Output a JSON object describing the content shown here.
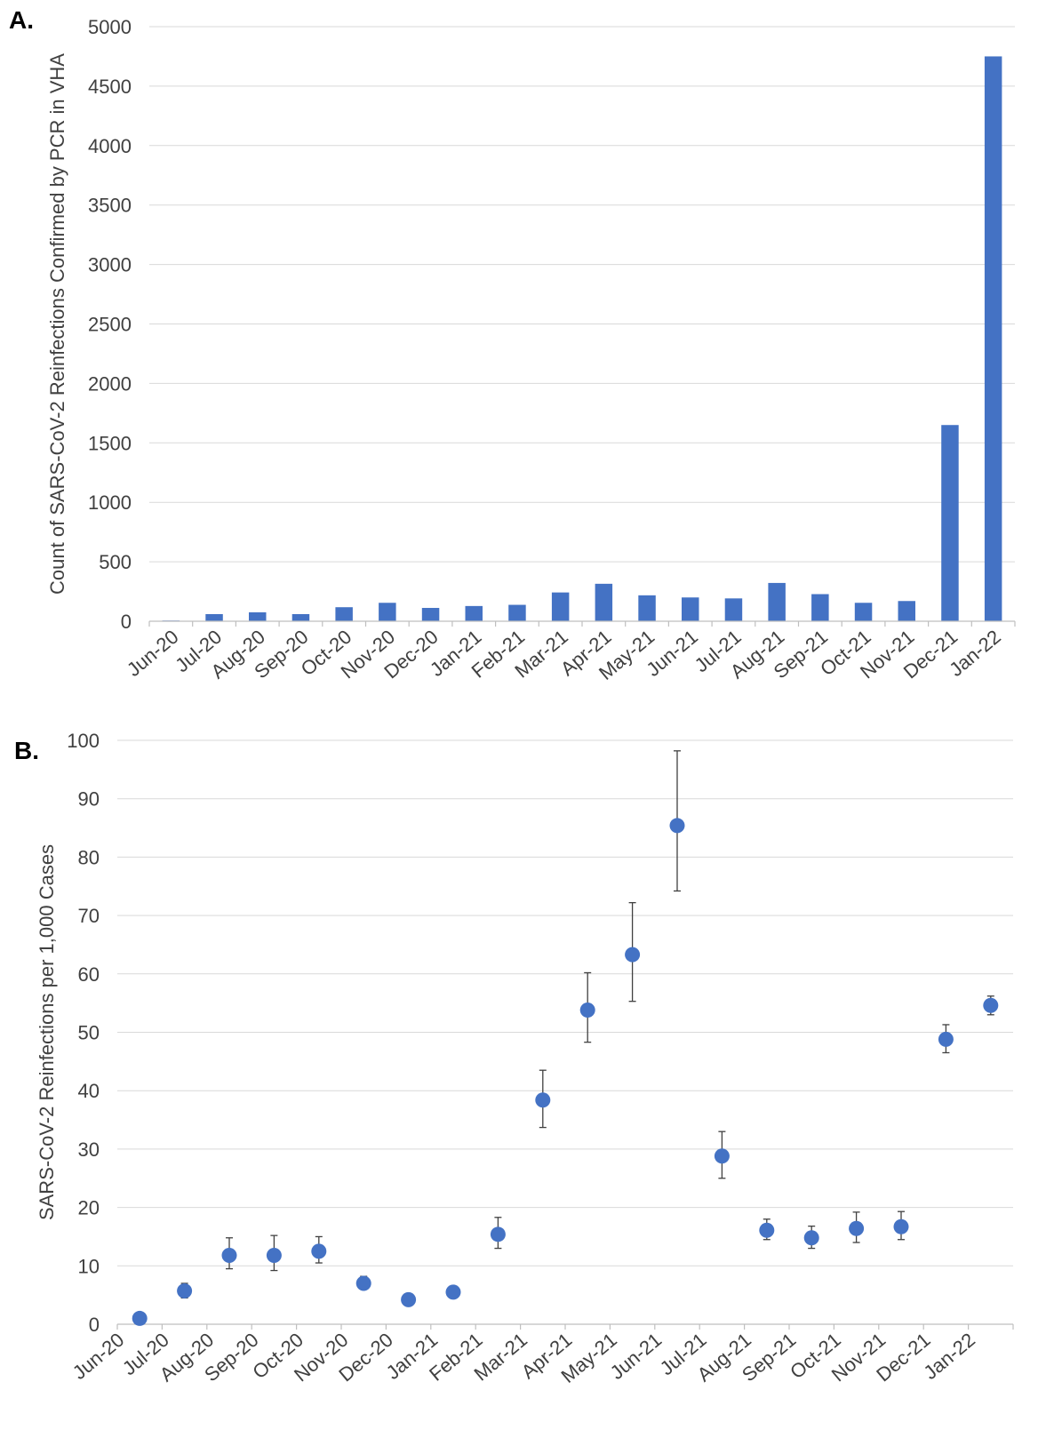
{
  "chart_data": [
    {
      "panel_label": "A.",
      "type": "bar",
      "ylabel": "Count of SARS-CoV-2 Reinfections Confirmed by PCR in VHA",
      "ylim": [
        0,
        5000
      ],
      "yticks": [
        0,
        500,
        1000,
        1500,
        2000,
        2500,
        3000,
        3500,
        4000,
        4500,
        5000
      ],
      "grid": true,
      "color": "#4472c4",
      "categories": [
        "Jun-20",
        "Jul-20",
        "Aug-20",
        "Sep-20",
        "Oct-20",
        "Nov-20",
        "Dec-20",
        "Jan-21",
        "Feb-21",
        "Mar-21",
        "Apr-21",
        "May-21",
        "Jun-21",
        "Jul-21",
        "Aug-21",
        "Sep-21",
        "Oct-21",
        "Nov-21",
        "Dec-21",
        "Jan-22"
      ],
      "values": [
        6,
        60,
        75,
        60,
        118,
        155,
        112,
        128,
        138,
        242,
        315,
        218,
        200,
        192,
        322,
        228,
        155,
        170,
        1650,
        4750
      ]
    },
    {
      "panel_label": "B.",
      "type": "scatter",
      "ylabel": "SARS-CoV-2 Reinfections per 1,000 Cases",
      "ylim": [
        0,
        100
      ],
      "yticks": [
        0,
        10,
        20,
        30,
        40,
        50,
        60,
        70,
        80,
        90,
        100
      ],
      "grid": true,
      "color": "#4472c4",
      "categories": [
        "Jun-20",
        "Jul-20",
        "Aug-20",
        "Sep-20",
        "Oct-20",
        "Nov-20",
        "Dec-20",
        "Jan-21",
        "Feb-21",
        "Mar-21",
        "Apr-21",
        "May-21",
        "Jun-21",
        "Jul-21",
        "Aug-21",
        "Sep-21",
        "Oct-21",
        "Nov-21",
        "Dec-21",
        "Jan-22"
      ],
      "values": [
        1.0,
        5.7,
        11.8,
        11.8,
        12.5,
        7.0,
        4.2,
        5.5,
        15.4,
        38.4,
        53.8,
        63.3,
        85.4,
        28.8,
        16.1,
        14.8,
        16.4,
        16.7,
        48.8,
        54.6
      ],
      "error_low": [
        0.3,
        4.5,
        9.5,
        9.2,
        10.5,
        6.0,
        3.8,
        5.0,
        13.0,
        33.7,
        48.3,
        55.3,
        74.2,
        25.0,
        14.5,
        13.0,
        14.0,
        14.5,
        46.5,
        53.0
      ],
      "error_high": [
        2.0,
        7.0,
        14.8,
        15.2,
        15.0,
        8.2,
        4.6,
        6.0,
        18.3,
        43.5,
        60.2,
        72.2,
        98.2,
        33.0,
        18.0,
        16.8,
        19.2,
        19.3,
        51.3,
        56.2
      ]
    }
  ]
}
